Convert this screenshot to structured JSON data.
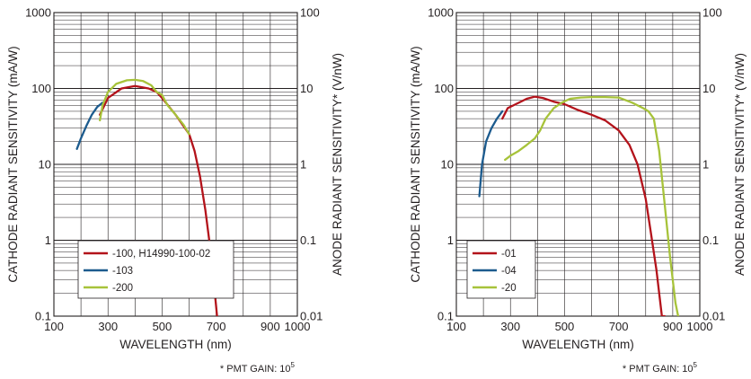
{
  "chart_data": [
    {
      "type": "line",
      "xlabel": "WAVELENGTH (nm)",
      "ylabel": "CATHODE RADIANT SENSITIVITY (mA/W)",
      "ylabel_right": "ANODE RADIANT SENSITIVITY* (V/nW)",
      "footnote": "* PMT GAIN: 10",
      "footnote_exp": "5",
      "x_scale": "linear",
      "y_scale": "log",
      "xlim": [
        100,
        1000
      ],
      "ylim": [
        0.1,
        1000
      ],
      "ylim_right": [
        0.01,
        100
      ],
      "x_ticks": [
        100,
        300,
        500,
        700,
        900,
        1000
      ],
      "x_tick_labels": [
        "100",
        "300",
        "500",
        "700",
        "900",
        "1000"
      ],
      "y_ticks": [
        0.1,
        1,
        10,
        100,
        1000
      ],
      "y_tick_labels": [
        "0.1",
        "1",
        "10",
        "100",
        "1000"
      ],
      "y_right_tick_labels": [
        "0.01",
        "0.1",
        "1",
        "10",
        "100"
      ],
      "grid": true,
      "legend_position": "bottom-center",
      "series": [
        {
          "name": "-100, H14990-100-02",
          "color": "#b3131b",
          "x": [
            270,
            300,
            350,
            400,
            450,
            480,
            500,
            550,
            600,
            620,
            640,
            660,
            680,
            690,
            700,
            703
          ],
          "y": [
            45,
            75,
            100,
            108,
            100,
            90,
            75,
            45,
            25,
            15,
            7,
            2.5,
            0.7,
            0.3,
            0.13,
            0.1
          ]
        },
        {
          "name": "-103",
          "color": "#1c5b8e",
          "x": [
            185,
            200,
            220,
            240,
            260,
            280
          ],
          "y": [
            16,
            22,
            32,
            45,
            57,
            65
          ]
        },
        {
          "name": "-200",
          "color": "#a7c33a",
          "x": [
            270,
            280,
            300,
            330,
            370,
            400,
            430,
            460,
            480,
            500,
            520,
            550,
            580,
            600
          ],
          "y": [
            38,
            60,
            90,
            115,
            128,
            130,
            125,
            110,
            90,
            82,
            60,
            45,
            33,
            25
          ]
        }
      ]
    },
    {
      "type": "line",
      "xlabel": "WAVELENGTH (nm)",
      "ylabel": "CATHODE RADIANT SENSITIVITY (mA/W)",
      "ylabel_right": "ANODE RADIANT SENSITIVITY* (V/nW)",
      "footnote": "* PMT GAIN: 10",
      "footnote_exp": "5",
      "x_scale": "linear",
      "y_scale": "log",
      "xlim": [
        100,
        1000
      ],
      "ylim": [
        0.1,
        1000
      ],
      "ylim_right": [
        0.01,
        100
      ],
      "x_ticks": [
        100,
        300,
        500,
        700,
        900,
        1000
      ],
      "x_tick_labels": [
        "100",
        "300",
        "500",
        "700",
        "900",
        "1000"
      ],
      "y_ticks": [
        0.1,
        1,
        10,
        100,
        1000
      ],
      "y_tick_labels": [
        "0.1",
        "1",
        "10",
        "100",
        "1000"
      ],
      "y_right_tick_labels": [
        "0.01",
        "0.1",
        "1",
        "10",
        "100"
      ],
      "grid": true,
      "legend_position": "bottom-left",
      "series": [
        {
          "name": "-01",
          "color": "#b3131b",
          "x": [
            270,
            290,
            320,
            360,
            390,
            420,
            460,
            500,
            550,
            600,
            650,
            700,
            740,
            770,
            800,
            820,
            840,
            850,
            860,
            870
          ],
          "y": [
            40,
            55,
            62,
            73,
            78,
            75,
            67,
            62,
            52,
            45,
            38,
            28,
            18,
            10,
            3.5,
            1.2,
            0.4,
            0.2,
            0.1,
            0.1
          ]
        },
        {
          "name": "-04",
          "color": "#1c5b8e",
          "x": [
            185,
            195,
            210,
            230,
            250,
            270
          ],
          "y": [
            3.8,
            10,
            20,
            30,
            40,
            50
          ]
        },
        {
          "name": "-20",
          "color": "#a7c33a",
          "x": [
            280,
            300,
            330,
            360,
            390,
            410,
            430,
            460,
            490,
            520,
            560,
            600,
            650,
            700,
            750,
            790,
            810,
            830,
            850,
            870,
            890,
            910,
            920
          ],
          "y": [
            11.5,
            13,
            15,
            18,
            22,
            28,
            40,
            55,
            65,
            73,
            76,
            77,
            77,
            76,
            65,
            55,
            50,
            40,
            15,
            3,
            0.6,
            0.15,
            0.1
          ]
        }
      ]
    }
  ]
}
